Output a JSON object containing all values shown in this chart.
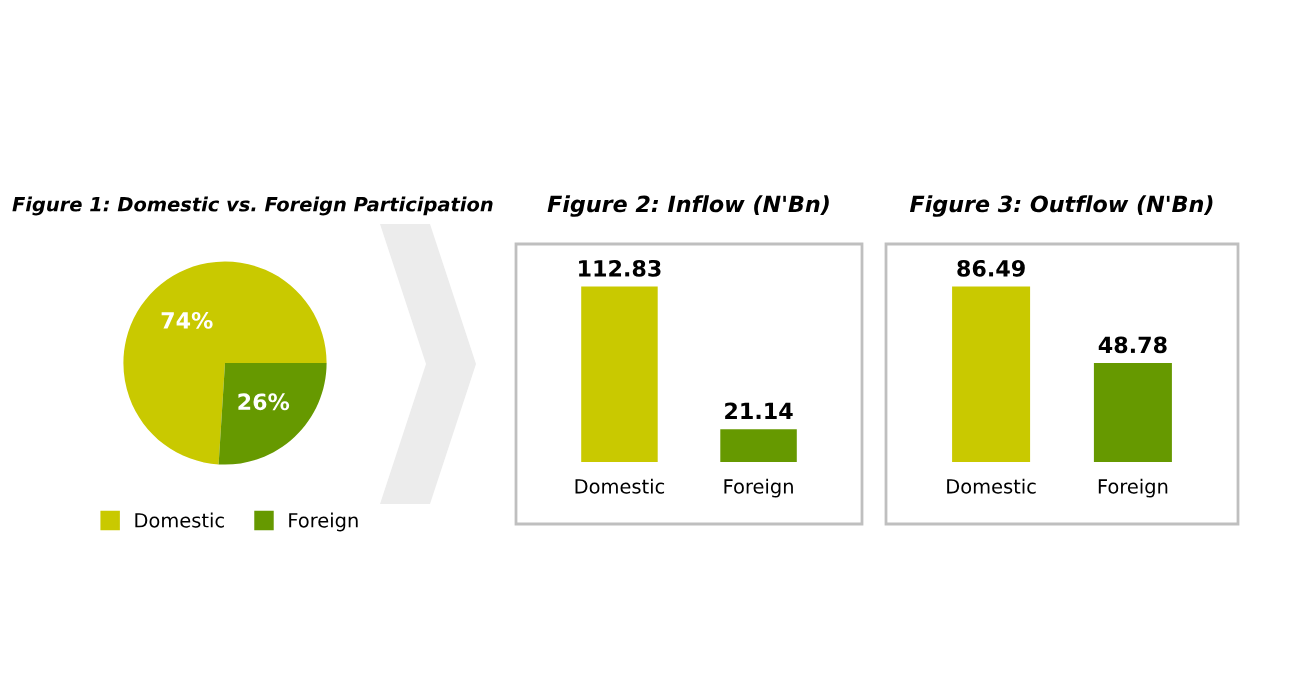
{
  "chart_data": [
    {
      "type": "pie",
      "title": "Figure 1: Domestic vs. Foreign Participation",
      "categories": [
        "Domestic",
        "Foreign"
      ],
      "values": [
        74,
        26
      ],
      "colors": [
        "#c9c900",
        "#669900"
      ],
      "value_labels": [
        "74%",
        "26%"
      ],
      "legend": "bottom"
    },
    {
      "type": "bar",
      "title": "Figure 2: Inflow (N'Bn)",
      "categories": [
        "Domestic",
        "Foreign"
      ],
      "values": [
        112.83,
        21.14
      ],
      "colors": [
        "#c9c900",
        "#669900"
      ],
      "data_labels": true
    },
    {
      "type": "bar",
      "title": "Figure 3: Outflow (N'Bn)",
      "categories": [
        "Domestic",
        "Foreign"
      ],
      "values": [
        86.49,
        48.78
      ],
      "colors": [
        "#c9c900",
        "#669900"
      ],
      "data_labels": true
    }
  ]
}
